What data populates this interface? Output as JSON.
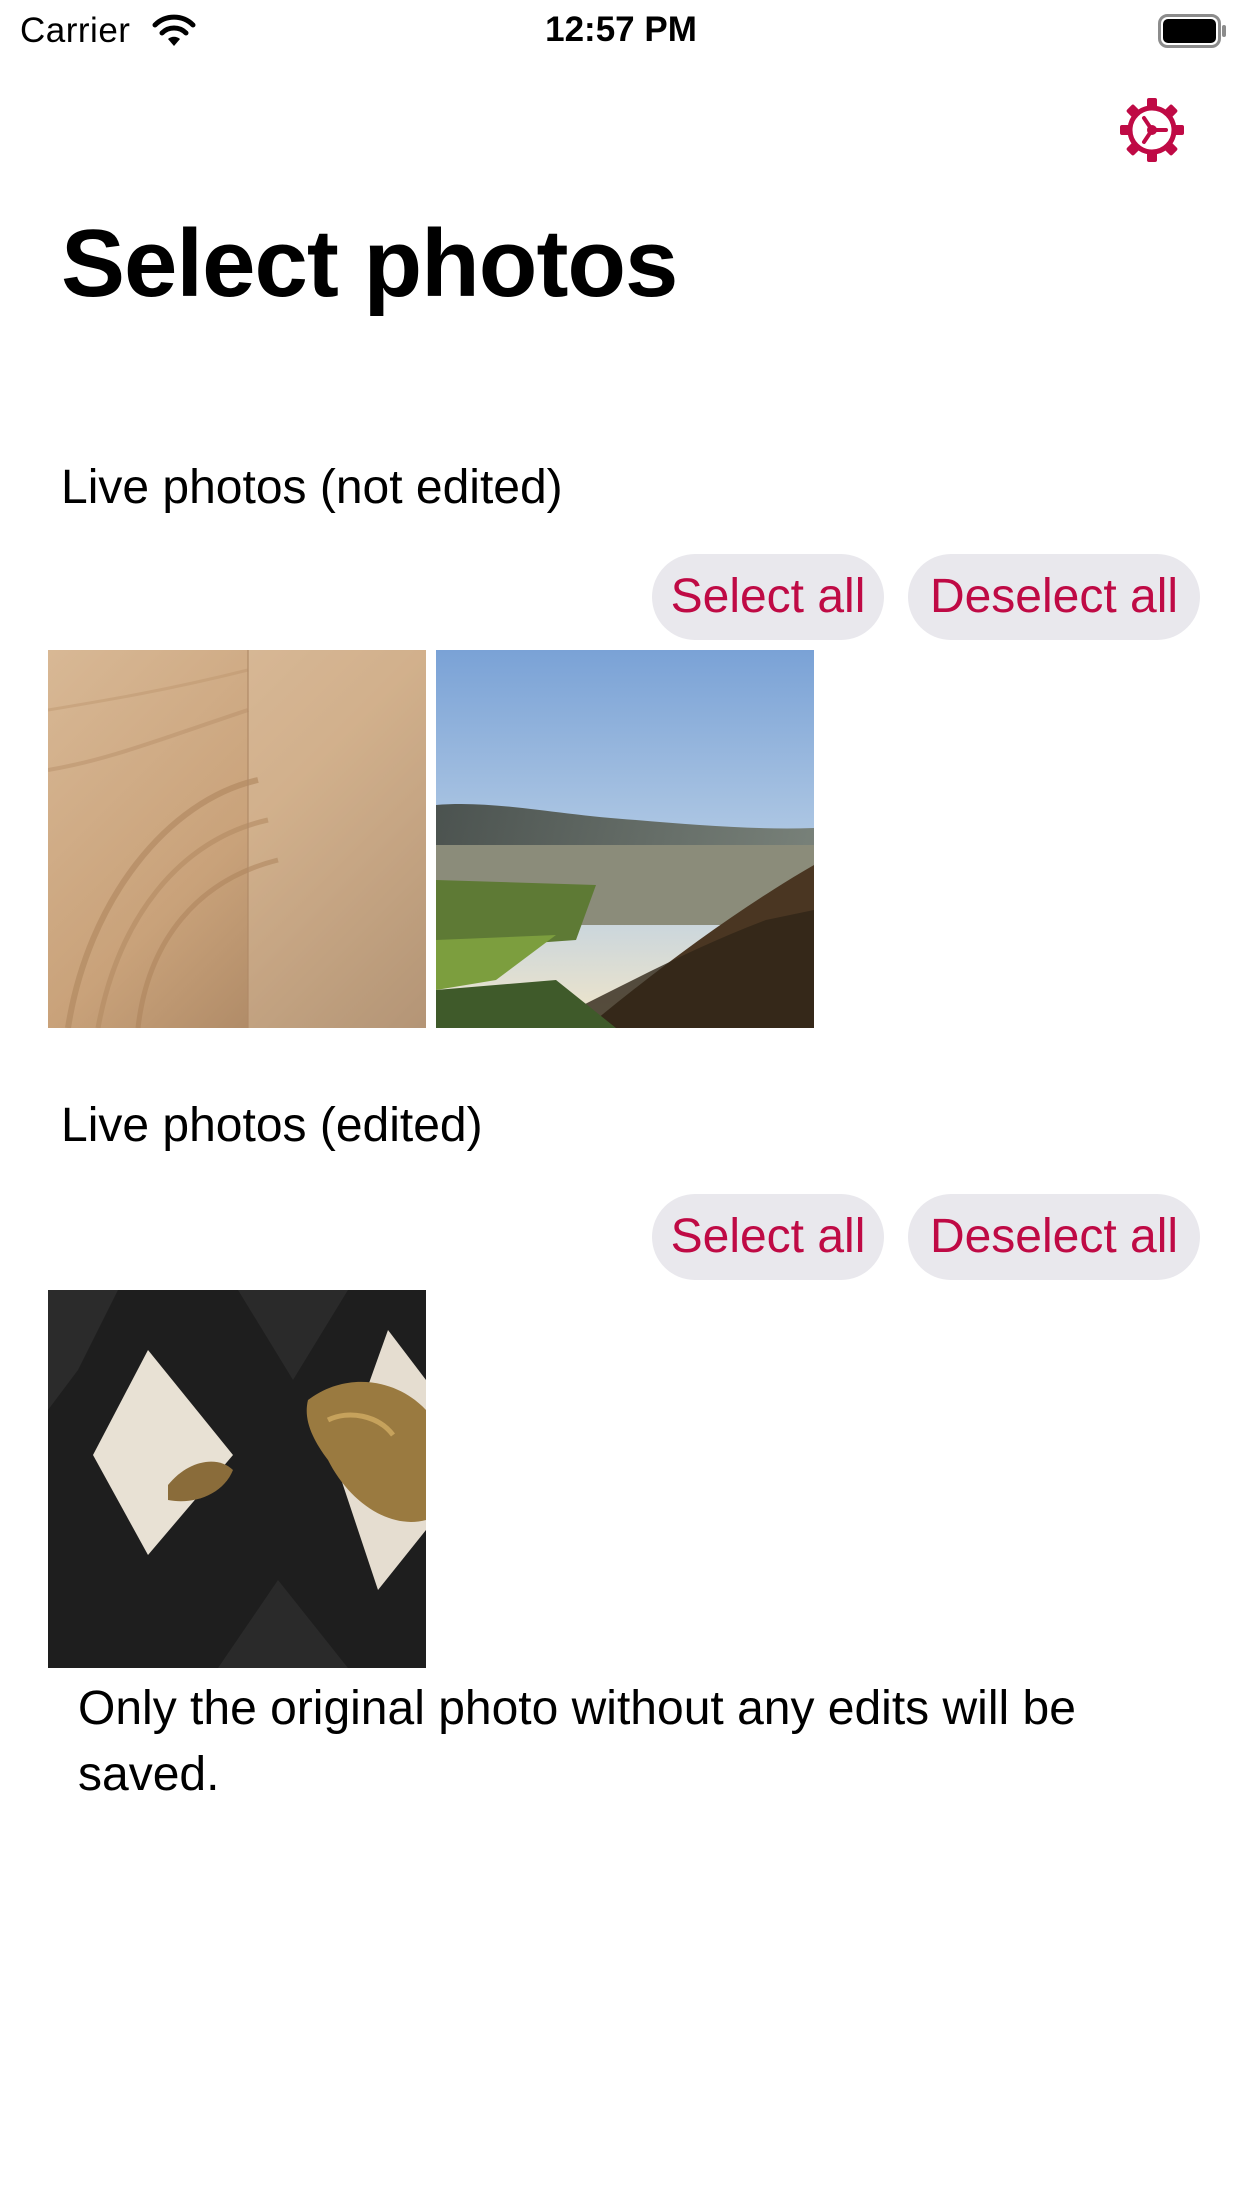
{
  "status_bar": {
    "carrier": "Carrier",
    "time": "12:57 PM",
    "icons": [
      "wifi-icon",
      "battery-icon"
    ]
  },
  "header": {
    "settings_icon": "gear-icon",
    "accent_color": "#bf0a45"
  },
  "page": {
    "title": "Select photos"
  },
  "sections": [
    {
      "title": "Live photos (not edited)",
      "select_all_label": "Select all",
      "deselect_all_label": "Deselect all",
      "photos": [
        "wood-grain-photo",
        "landscape-valley-photo"
      ]
    },
    {
      "title": "Live photos (edited)",
      "select_all_label": "Select all",
      "deselect_all_label": "Deselect all",
      "photos": [
        "black-knit-fabric-photo"
      ]
    }
  ],
  "note": "Only the original photo without any edits will be saved."
}
